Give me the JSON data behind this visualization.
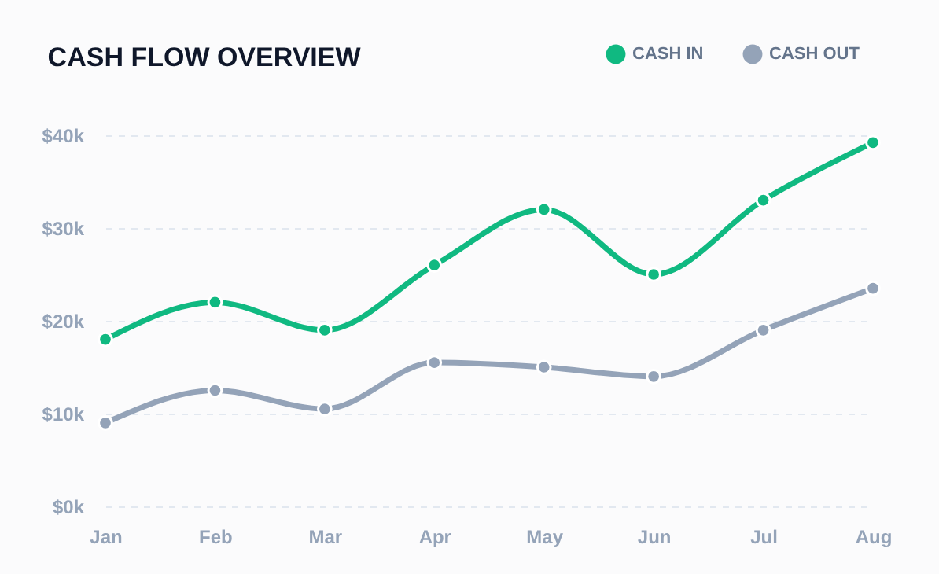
{
  "chart_data": {
    "type": "line",
    "title": "CASH FLOW OVERVIEW",
    "categories": [
      "Jan",
      "Feb",
      "Mar",
      "Apr",
      "May",
      "Jun",
      "Jul",
      "Aug"
    ],
    "series": [
      {
        "name": "CASH IN",
        "color": "#10b981",
        "values": [
          18000,
          22000,
          19000,
          26000,
          32000,
          25000,
          33000,
          39200
        ]
      },
      {
        "name": "CASH OUT",
        "color": "#94a3b8",
        "values": [
          9000,
          12500,
          10500,
          15500,
          15000,
          14000,
          19000,
          23500
        ]
      }
    ],
    "ylim": [
      0,
      40000
    ],
    "yticks": [
      {
        "value": 0,
        "label": "$0k"
      },
      {
        "value": 10000,
        "label": "$10k"
      },
      {
        "value": 20000,
        "label": "$20k"
      },
      {
        "value": 30000,
        "label": "$30k"
      },
      {
        "value": 40000,
        "label": "$40k"
      }
    ],
    "grid": "y",
    "legend": "top right",
    "marker": "circle",
    "line_style": "solid"
  }
}
